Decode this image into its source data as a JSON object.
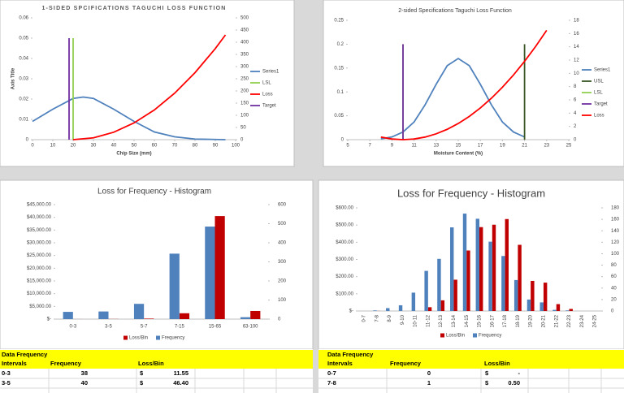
{
  "chart_data": [
    {
      "type": "line",
      "title": "1-SIDED SPCIFICATIONS TAGUCHI LOSS FUNCTION",
      "x_label": "Chip Size (mm)",
      "y_label": "Axis Title",
      "xlim": [
        0,
        100
      ],
      "xticks": [
        0,
        10,
        20,
        30,
        40,
        50,
        60,
        70,
        80,
        90,
        100
      ],
      "ylim": [
        0,
        0.06
      ],
      "yticks": [
        0,
        0.01,
        0.02,
        0.03,
        0.04,
        0.05,
        0.06
      ],
      "y2lim": [
        0,
        500
      ],
      "y2ticks": [
        0,
        50,
        100,
        150,
        200,
        250,
        300,
        350,
        400,
        450,
        500
      ],
      "legend": "right",
      "series": [
        {
          "name": "Series1",
          "color": "#4f81bd",
          "x": [
            0,
            10,
            20,
            25,
            30,
            40,
            50,
            60,
            70,
            80,
            90,
            95
          ],
          "values": [
            0.009,
            0.015,
            0.0203,
            0.021,
            0.0203,
            0.015,
            0.009,
            0.0038,
            0.0014,
            0.0003,
            0.0001,
            0
          ]
        },
        {
          "name": "LSL",
          "color": "#92d050",
          "x": [
            20,
            20
          ],
          "values": [
            0,
            0.05
          ]
        },
        {
          "name": "Loss",
          "color": "#ff0000",
          "axis": "y2",
          "x": [
            20,
            30,
            40,
            50,
            60,
            70,
            80,
            90,
            95
          ],
          "values": [
            0,
            7.6,
            30.6,
            68.8,
            122,
            191,
            275,
            374,
            430
          ]
        },
        {
          "name": "Target",
          "color": "#7030a0",
          "x": [
            18,
            18
          ],
          "values": [
            0,
            0.05
          ]
        }
      ]
    },
    {
      "type": "line",
      "title": "2-sided Specifications Taguchi Loss Function",
      "x_label": "Moisture Content (%)",
      "xlim": [
        5,
        25
      ],
      "xticks": [
        5,
        7,
        9,
        11,
        13,
        15,
        17,
        19,
        21,
        23,
        25
      ],
      "ylim": [
        0,
        0.25
      ],
      "yticks": [
        0,
        0.05,
        0.1,
        0.15,
        0.2,
        0.25
      ],
      "y2lim": [
        0,
        18
      ],
      "y2ticks": [
        0,
        2,
        4,
        6,
        8,
        10,
        12,
        14,
        16,
        18
      ],
      "legend": "right",
      "series": [
        {
          "name": "Series1",
          "color": "#4f81bd",
          "x": [
            8,
            9,
            10,
            11,
            12,
            13,
            14,
            15,
            16,
            17,
            18,
            19,
            20,
            21
          ],
          "values": [
            0.0017,
            0.0057,
            0.016,
            0.037,
            0.073,
            0.116,
            0.155,
            0.17,
            0.155,
            0.116,
            0.073,
            0.037,
            0.016,
            0.0057
          ]
        },
        {
          "name": "USL",
          "color": "#375623",
          "x": [
            21,
            21
          ],
          "values": [
            0,
            0.2
          ]
        },
        {
          "name": "LSL",
          "color": "#92d050",
          "x": [
            10,
            10
          ],
          "values": [
            0,
            0.2
          ]
        },
        {
          "name": "Target",
          "color": "#7030a0",
          "x": [
            10,
            10
          ],
          "values": [
            0,
            0.2
          ]
        },
        {
          "name": "Loss",
          "color": "#ff0000",
          "axis": "y2",
          "x": [
            8,
            9,
            10,
            11,
            12,
            13,
            14,
            15,
            16,
            17,
            18,
            19,
            20,
            21,
            22,
            23
          ],
          "values": [
            0.39,
            0.1,
            0,
            0.1,
            0.39,
            0.88,
            1.56,
            2.44,
            3.51,
            4.78,
            6.25,
            7.91,
            9.76,
            11.81,
            14.05,
            16.49
          ]
        }
      ]
    },
    {
      "type": "bar",
      "title": "Loss for Frequency - Histogram",
      "categories": [
        "0-3",
        "3-5",
        "5-7",
        "7-15",
        "15-65",
        "63-100"
      ],
      "ylim": [
        0,
        45000
      ],
      "yticks": [
        {
          "value": 0,
          "label": "$-"
        },
        {
          "value": 5000,
          "label": "$5,000.00"
        },
        {
          "value": 10000,
          "label": "$10,000.00"
        },
        {
          "value": 15000,
          "label": "$15,000.00"
        },
        {
          "value": 20000,
          "label": "$20,000.00"
        },
        {
          "value": 25000,
          "label": "$25,000.00"
        },
        {
          "value": 30000,
          "label": "$30,000.00"
        },
        {
          "value": 35000,
          "label": "$35,000.00"
        },
        {
          "value": 40000,
          "label": "$40,000.00"
        },
        {
          "value": 45000,
          "label": "$45,000.00"
        }
      ],
      "y2lim": [
        0,
        600
      ],
      "y2ticks": [
        0,
        100,
        200,
        300,
        400,
        500,
        600
      ],
      "legend": "bottom",
      "series": [
        {
          "name": "Loss/Bin",
          "color": "#c00000",
          "values": [
            11.55,
            46.4,
            200,
            2300,
            40500,
            3200
          ]
        },
        {
          "name": "Frequency",
          "color": "#4f81bd",
          "axis": "y2",
          "values": [
            38,
            40,
            80,
            343,
            485,
            10
          ]
        }
      ]
    },
    {
      "type": "bar",
      "title": "Loss for Frequency - Histogram",
      "categories": [
        "0-7",
        "7-8",
        "8-9",
        "9-10",
        "10-11",
        "11-12",
        "12-13",
        "13-14",
        "14-15",
        "15-16",
        "16-17",
        "17-18",
        "18-19",
        "19-20",
        "20-21",
        "21-22",
        "22-23",
        "23-24",
        "24-25"
      ],
      "ylim": [
        0,
        600
      ],
      "yticks": [
        {
          "value": 0,
          "label": "$-"
        },
        {
          "value": 100,
          "label": "$100.00"
        },
        {
          "value": 200,
          "label": "$200.00"
        },
        {
          "value": 300,
          "label": "$300.00"
        },
        {
          "value": 400,
          "label": "$400.00"
        },
        {
          "value": 500,
          "label": "$500.00"
        },
        {
          "value": 600,
          "label": "$600.00"
        }
      ],
      "y2lim": [
        0,
        180
      ],
      "y2ticks": [
        0,
        20,
        40,
        60,
        80,
        100,
        120,
        140,
        160,
        180
      ],
      "legend": "bottom",
      "series": [
        {
          "name": "Loss/Bin",
          "color": "#c00000",
          "values": [
            0,
            0.5,
            0,
            0,
            0,
            22,
            62,
            182,
            352,
            488,
            502,
            535,
            385,
            175,
            165,
            40,
            12,
            0,
            0
          ]
        },
        {
          "name": "Frequency",
          "color": "#4f81bd",
          "axis": "y2",
          "values": [
            0,
            1,
            5,
            10,
            32,
            70,
            91,
            146,
            170,
            161,
            121,
            96,
            54,
            20,
            15,
            2,
            1,
            0,
            0
          ]
        }
      ]
    }
  ],
  "tables": [
    {
      "title": "Data Frequency",
      "headers": [
        "Intervals",
        "Frequency",
        "Loss/Bin"
      ],
      "rows": [
        [
          "0-3",
          "38",
          "$",
          "11.55"
        ],
        [
          "3-5",
          "40",
          "$",
          "46.40"
        ]
      ]
    },
    {
      "title": "Data Frequency",
      "headers": [
        "Intervals",
        "Frequency",
        "Loss/Bin"
      ],
      "rows": [
        [
          "0-7",
          "0",
          "$",
          "-"
        ],
        [
          "7-8",
          "1",
          "$",
          "0.50"
        ]
      ]
    }
  ]
}
